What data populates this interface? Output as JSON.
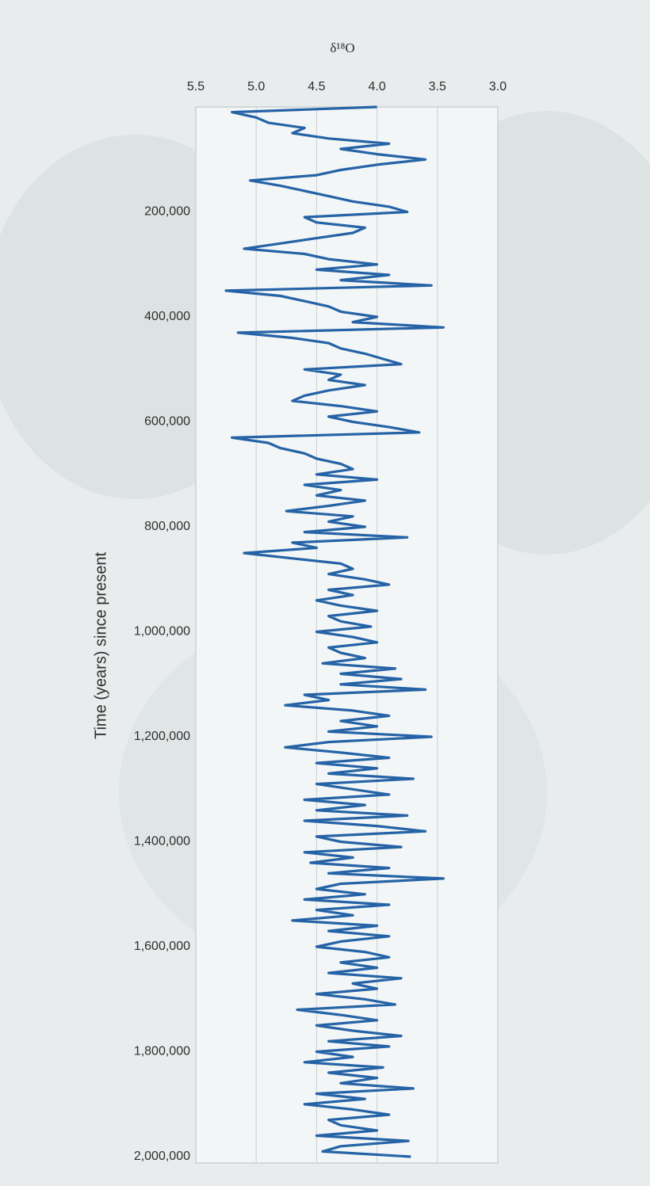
{
  "chart_data": {
    "type": "line",
    "y_label": "δ¹⁸O",
    "x_label": "Time (years) since present",
    "color": "#2563a6",
    "grid": true,
    "x": [
      0,
      10000,
      20000,
      30000,
      40000,
      50000,
      60000,
      70000,
      80000,
      90000,
      100000,
      110000,
      120000,
      130000,
      140000,
      150000,
      160000,
      170000,
      180000,
      190000,
      200000,
      210000,
      220000,
      230000,
      240000,
      250000,
      260000,
      270000,
      280000,
      290000,
      300000,
      310000,
      320000,
      330000,
      340000,
      350000,
      360000,
      370000,
      380000,
      390000,
      400000,
      410000,
      420000,
      430000,
      440000,
      450000,
      460000,
      470000,
      480000,
      490000,
      500000,
      510000,
      520000,
      530000,
      540000,
      550000,
      560000,
      570000,
      580000,
      590000,
      600000,
      610000,
      620000,
      630000,
      640000,
      650000,
      660000,
      670000,
      680000,
      690000,
      700000,
      710000,
      720000,
      730000,
      740000,
      750000,
      760000,
      770000,
      780000,
      790000,
      800000,
      810000,
      820000,
      830000,
      840000,
      850000,
      860000,
      870000,
      880000,
      890000,
      900000,
      910000,
      920000,
      930000,
      940000,
      950000,
      960000,
      970000,
      980000,
      990000,
      1000000,
      1010000,
      1020000,
      1030000,
      1040000,
      1050000,
      1060000,
      1070000,
      1080000,
      1090000,
      1100000,
      1110000,
      1120000,
      1130000,
      1140000,
      1150000,
      1160000,
      1170000,
      1180000,
      1190000,
      1200000,
      1210000,
      1220000,
      1230000,
      1240000,
      1250000,
      1260000,
      1270000,
      1280000,
      1290000,
      1300000,
      1310000,
      1320000,
      1330000,
      1340000,
      1350000,
      1360000,
      1370000,
      1380000,
      1390000,
      1400000,
      1410000,
      1420000,
      1430000,
      1440000,
      1450000,
      1460000,
      1470000,
      1480000,
      1490000,
      1500000,
      1510000,
      1520000,
      1530000,
      1540000,
      1550000,
      1560000,
      1570000,
      1580000,
      1590000,
      1600000,
      1610000,
      1620000,
      1630000,
      1640000,
      1650000,
      1660000,
      1670000,
      1680000,
      1690000,
      1700000,
      1710000,
      1720000,
      1730000,
      1740000,
      1750000,
      1760000,
      1770000,
      1780000,
      1790000,
      1800000,
      1810000,
      1820000,
      1830000,
      1840000,
      1850000,
      1860000,
      1870000,
      1880000,
      1890000,
      1900000,
      1910000,
      1920000,
      1930000,
      1940000,
      1950000,
      1960000,
      1970000,
      1980000,
      1990000,
      2000000
    ],
    "values": [
      4.0,
      5.2,
      5.0,
      4.9,
      4.6,
      4.7,
      4.4,
      3.9,
      4.3,
      4.0,
      3.6,
      4.0,
      4.3,
      4.5,
      5.05,
      4.8,
      4.6,
      4.4,
      4.2,
      3.9,
      3.75,
      4.6,
      4.5,
      4.1,
      4.2,
      4.5,
      4.8,
      5.1,
      4.6,
      4.4,
      4.0,
      4.5,
      3.9,
      4.3,
      3.55,
      5.25,
      4.8,
      4.6,
      4.4,
      4.3,
      4.0,
      4.2,
      3.45,
      5.15,
      4.7,
      4.4,
      4.3,
      4.1,
      3.95,
      3.8,
      4.6,
      4.3,
      4.4,
      4.1,
      4.4,
      4.6,
      4.7,
      4.3,
      4.0,
      4.4,
      4.2,
      3.9,
      3.65,
      5.2,
      4.9,
      4.8,
      4.6,
      4.5,
      4.3,
      4.2,
      4.5,
      4.0,
      4.6,
      4.3,
      4.5,
      4.1,
      4.4,
      4.75,
      4.2,
      4.4,
      4.1,
      4.6,
      3.75,
      4.7,
      4.5,
      5.1,
      4.7,
      4.3,
      4.2,
      4.4,
      4.1,
      3.9,
      4.4,
      4.2,
      4.5,
      4.3,
      4.0,
      4.4,
      4.3,
      4.05,
      4.5,
      4.2,
      4.0,
      4.4,
      4.3,
      4.1,
      4.45,
      3.85,
      4.3,
      3.8,
      4.3,
      3.6,
      4.6,
      4.4,
      4.76,
      4.2,
      3.9,
      4.3,
      4.0,
      4.4,
      3.55,
      4.4,
      4.76,
      4.3,
      3.9,
      4.5,
      4.0,
      4.4,
      3.7,
      4.5,
      4.2,
      3.9,
      4.6,
      4.1,
      4.5,
      3.75,
      4.6,
      4.0,
      3.6,
      4.5,
      4.3,
      3.8,
      4.6,
      4.2,
      4.55,
      3.9,
      4.4,
      3.45,
      4.3,
      4.5,
      4.1,
      4.6,
      3.9,
      4.5,
      4.2,
      4.7,
      4.0,
      4.4,
      3.9,
      4.3,
      4.5,
      4.1,
      3.9,
      4.3,
      4.0,
      4.4,
      3.8,
      4.2,
      4.0,
      4.5,
      4.1,
      3.85,
      4.66,
      4.3,
      4.0,
      4.5,
      4.2,
      3.8,
      4.4,
      3.9,
      4.5,
      4.2,
      4.6,
      3.95,
      4.4,
      4.0,
      4.3,
      3.7,
      4.5,
      4.1,
      4.6,
      4.2,
      3.9,
      4.4,
      4.3,
      4.0,
      4.5,
      3.74,
      4.3,
      4.45,
      3.72
    ],
    "xlim": [
      0,
      2000000
    ],
    "xticks": [
      {
        "value": 200000,
        "label": "200,000"
      },
      {
        "value": 400000,
        "label": "400,000"
      },
      {
        "value": 600000,
        "label": "600,000"
      },
      {
        "value": 800000,
        "label": "800,000"
      },
      {
        "value": 1000000,
        "label": "1,000,000"
      },
      {
        "value": 1200000,
        "label": "1,200,000"
      },
      {
        "value": 1400000,
        "label": "1,400,000"
      },
      {
        "value": 1600000,
        "label": "1,600,000"
      },
      {
        "value": 1800000,
        "label": "1,800,000"
      },
      {
        "value": 2000000,
        "label": "2,000,000"
      }
    ],
    "ylim": [
      5.5,
      3.0
    ],
    "yticks": [
      5.5,
      {
        "value": 5,
        "label": "5.0"
      },
      4.5,
      {
        "value": 4,
        "label": "4.0"
      },
      3.5,
      {
        "value": 3,
        "label": "3.0"
      }
    ]
  }
}
